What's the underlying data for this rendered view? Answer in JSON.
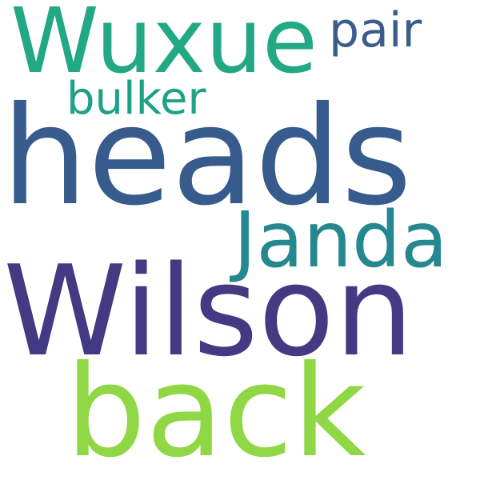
{
  "word_cloud": {
    "background_color": "#ffffff",
    "words": [
      {
        "text": "Wuxue",
        "color": "#22a884"
      },
      {
        "text": "pair",
        "color": "#3b5d8b"
      },
      {
        "text": "bulker",
        "color": "#1fa187"
      },
      {
        "text": "heads",
        "color": "#375b8d"
      },
      {
        "text": "Janda",
        "color": "#25888e"
      },
      {
        "text": "Wilson",
        "color": "#443a83"
      },
      {
        "text": "back",
        "color": "#8fd744"
      }
    ]
  }
}
